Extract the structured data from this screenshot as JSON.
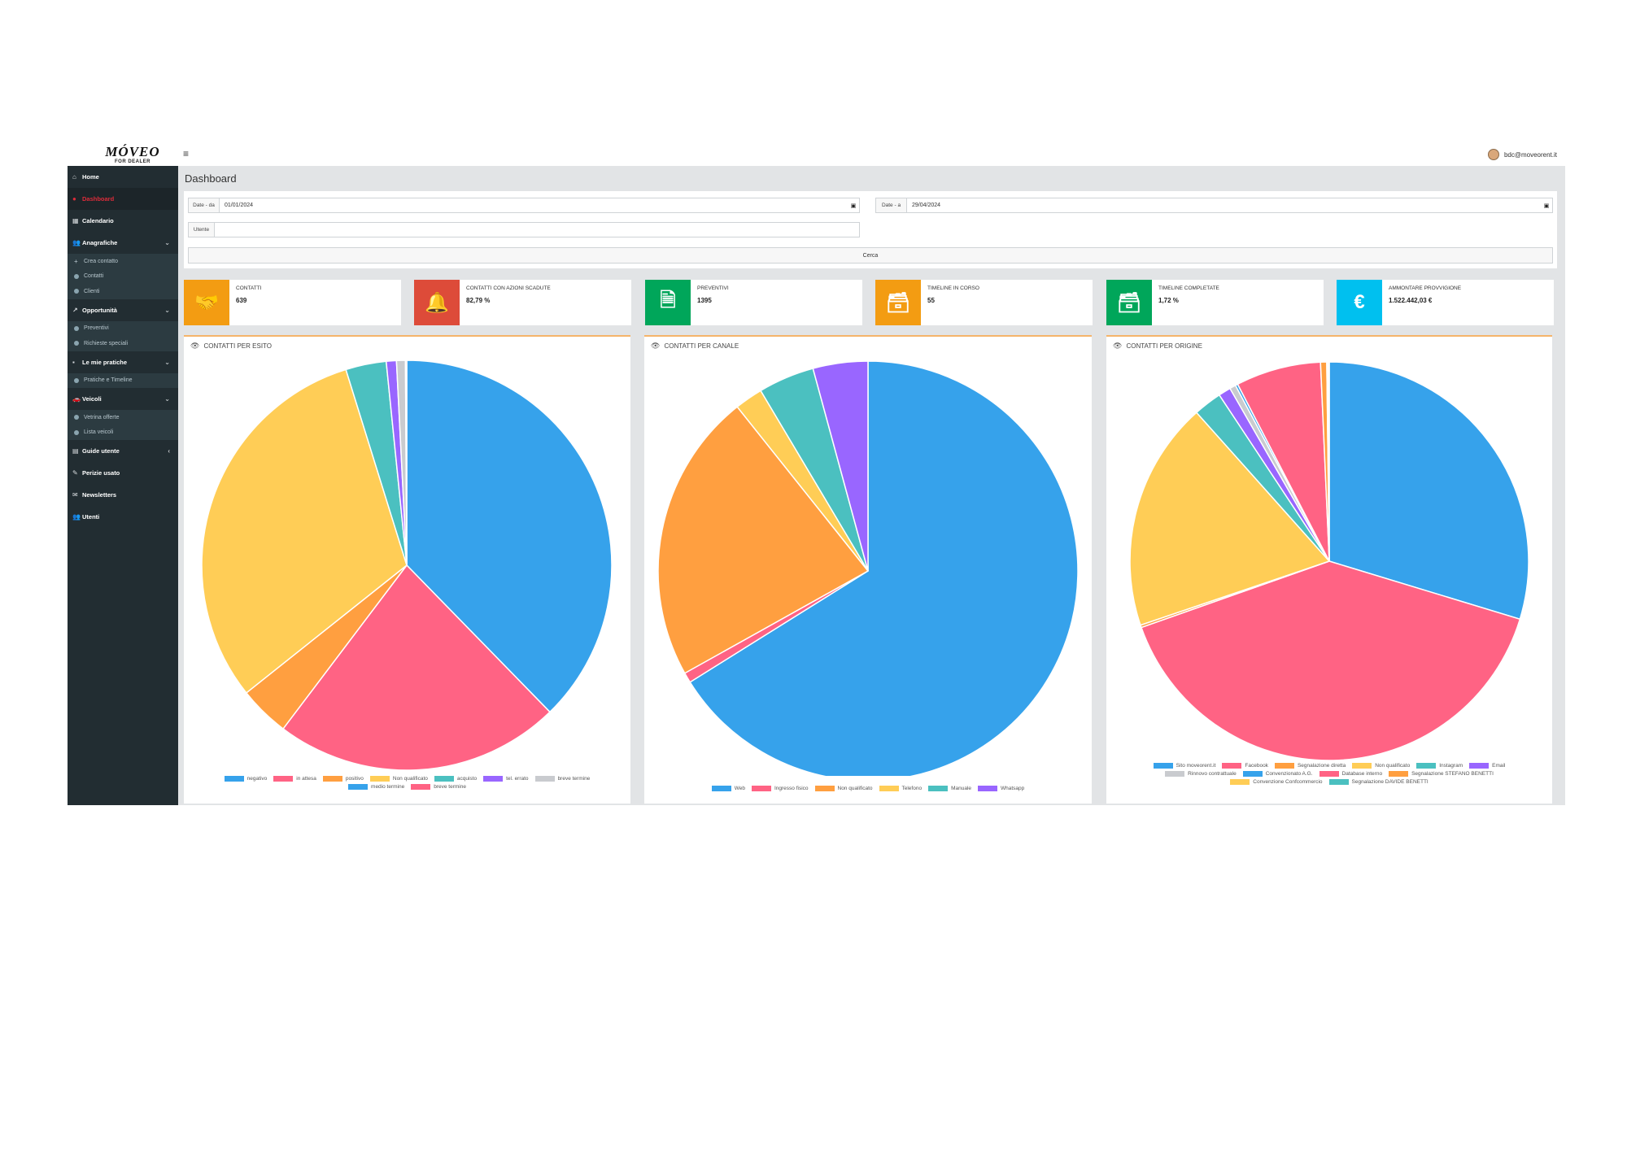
{
  "app": {
    "brand": "MÓVEO",
    "brand_sub": "FOR DEALER",
    "user_email": "bdc@moveorent.it"
  },
  "sidebar": {
    "home": "Home",
    "dashboard": "Dashboard",
    "calendario": "Calendario",
    "anagrafiche": "Anagrafiche",
    "anagrafiche_items": [
      "Crea contatto",
      "Contatti",
      "Clienti"
    ],
    "opportunita": "Opportunità",
    "opportunita_items": [
      "Preventivi",
      "Richieste speciali"
    ],
    "pratiche": "Le mie pratiche",
    "pratiche_items": [
      "Pratiche e Timeline"
    ],
    "veicoli": "Veicoli",
    "veicoli_items": [
      "Vetrina offerte",
      "Lista veicoli"
    ],
    "guide": "Guide utente",
    "perizie": "Perizie usato",
    "newsletters": "Newsletters",
    "utenti": "Utenti"
  },
  "page": {
    "title": "Dashboard"
  },
  "filters": {
    "date_from_label": "Date - da",
    "date_from_value": "01/01/2024",
    "date_to_label": "Date - a",
    "date_to_value": "29/04/2024",
    "user_label": "Utente",
    "user_value": "",
    "search_label": "Cerca"
  },
  "kpis": [
    {
      "label": "CONTATTI",
      "value": "639",
      "color": "#f39c12",
      "icon": "handshake-icon",
      "glyph": "🤝"
    },
    {
      "label": "CONTATTI CON AZIONI SCADUTE",
      "value": "82,79 %",
      "color": "#dd4b39",
      "icon": "bell-icon",
      "glyph": "🔔"
    },
    {
      "label": "PREVENTIVI",
      "value": "1395",
      "color": "#00a65a",
      "icon": "document-icon",
      "glyph": "🗎"
    },
    {
      "label": "TIMELINE IN CORSO",
      "value": "55",
      "color": "#f39c12",
      "icon": "archive-icon",
      "glyph": "🗃"
    },
    {
      "label": "TIMELINE COMPLETATE",
      "value": "1,72 %",
      "color": "#00a65a",
      "icon": "archive-icon",
      "glyph": "🗃"
    },
    {
      "label": "AMMONTARE PROVVIGIONE",
      "value": "1.522.442,03 €",
      "color": "#00c0ef",
      "icon": "euro-icon",
      "glyph": "€"
    }
  ],
  "chart_data": [
    {
      "type": "pie",
      "title": "CONTATTI PER ESITO",
      "labels": [
        "negativo",
        "in attesa",
        "positivo",
        "Non qualificato",
        "acquisto",
        "tel. errato",
        "breve termine",
        "medio termine",
        "breve termine"
      ],
      "values": [
        37.7,
        22.6,
        4.0,
        30.9,
        3.2,
        0.8,
        0.7,
        0.0,
        0.1
      ],
      "colors": [
        "#36a2eb",
        "#ff6384",
        "#ff9f40",
        "#ffcd56",
        "#4bc0c0",
        "#9966ff",
        "#c9cbcf",
        "#36a2eb",
        "#ff6384"
      ]
    },
    {
      "type": "pie",
      "title": "CONTATTI PER CANALE",
      "labels": [
        "Web",
        "Ingresso fisico",
        "Non qualificato",
        "Telefono",
        "Manuale",
        "Whatsapp"
      ],
      "values": [
        67.3,
        0.8,
        22.8,
        2.2,
        4.4,
        4.3
      ],
      "colors": [
        "#36a2eb",
        "#ff6384",
        "#ff9f40",
        "#ffcd56",
        "#4bc0c0",
        "#9966ff"
      ]
    },
    {
      "type": "pie",
      "title": "CONTATTI PER ORIGINE",
      "labels": [
        "Sito moveorent.it",
        "Facebook",
        "Segnalazione diretta",
        "Non qualificato",
        "Instagram",
        "Email",
        "Rinnovo contrattuale",
        "Convenzionato A.G.",
        "Database interno",
        "Segnalazione STEFANO BENETTI",
        "Convenzione Confcommercio",
        "Segnalazione DAVIDE BENETTI"
      ],
      "values": [
        29.7,
        39.9,
        0.2,
        18.6,
        2.3,
        1.0,
        0.5,
        0.2,
        6.9,
        0.5,
        0.1,
        0.1
      ],
      "colors": [
        "#36a2eb",
        "#ff6384",
        "#ff9f40",
        "#ffcd56",
        "#4bc0c0",
        "#9966ff",
        "#c9cbcf",
        "#36a2eb",
        "#ff6384",
        "#ff9f40",
        "#ffcd56",
        "#4bc0c0"
      ]
    }
  ]
}
